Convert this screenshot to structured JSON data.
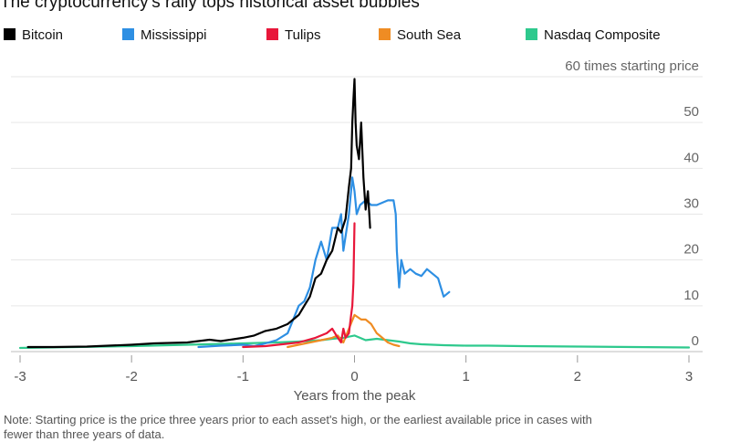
{
  "title": "The cryptocurrency's rally tops historical asset bubbles",
  "note": "Note: Starting price is the price three years prior to each asset's high, or the earliest available price in cases with fewer than three years of data.",
  "chart_data": {
    "type": "line",
    "xlabel": "Years from the peak",
    "ylabel": "60 times starting price",
    "xlim": [
      -3,
      3
    ],
    "ylim": [
      0,
      60
    ],
    "x_ticks": [
      -3,
      -2,
      -1,
      0,
      1,
      2,
      3
    ],
    "x_tick_labels": [
      "-3",
      "-2",
      "-1",
      "0",
      "1",
      "2",
      "3"
    ],
    "y_ticks": [
      0,
      10,
      20,
      30,
      40,
      50,
      60
    ],
    "y_tick_labels": [
      "0",
      "10",
      "20",
      "30",
      "40",
      "50",
      "60 times starting price"
    ],
    "grid": "horizontal",
    "legend_position": "top",
    "series": [
      {
        "name": "Bitcoin",
        "color": "#000000",
        "x": [
          -2.93,
          -2.7,
          -2.4,
          -2.0,
          -1.8,
          -1.5,
          -1.3,
          -1.2,
          -1.0,
          -0.9,
          -0.8,
          -0.7,
          -0.6,
          -0.5,
          -0.45,
          -0.4,
          -0.35,
          -0.3,
          -0.25,
          -0.2,
          -0.15,
          -0.12,
          -0.08,
          -0.05,
          -0.03,
          -0.02,
          -0.01,
          0.0,
          0.01,
          0.02,
          0.04,
          0.06,
          0.08,
          0.1,
          0.12,
          0.14
        ],
        "y": [
          1.0,
          1.0,
          1.1,
          1.5,
          1.8,
          2.0,
          2.6,
          2.3,
          3.0,
          3.5,
          4.5,
          5.0,
          6.0,
          8.0,
          10.0,
          12.0,
          16.0,
          17.0,
          20.0,
          22.0,
          27.0,
          26.0,
          29.0,
          36.0,
          40.0,
          50.0,
          55.0,
          59.5,
          50.0,
          45.0,
          42.0,
          50.0,
          38.0,
          31.0,
          35.0,
          27.0
        ]
      },
      {
        "name": "Mississippi",
        "color": "#2e8fe3",
        "x": [
          -1.4,
          -1.2,
          -1.0,
          -0.9,
          -0.8,
          -0.7,
          -0.6,
          -0.55,
          -0.5,
          -0.45,
          -0.4,
          -0.35,
          -0.3,
          -0.25,
          -0.2,
          -0.15,
          -0.12,
          -0.1,
          -0.05,
          -0.02,
          0.0,
          0.02,
          0.05,
          0.1,
          0.15,
          0.2,
          0.3,
          0.35,
          0.37,
          0.38,
          0.4,
          0.42,
          0.45,
          0.5,
          0.55,
          0.6,
          0.65,
          0.7,
          0.75,
          0.8,
          0.85
        ],
        "y": [
          1.0,
          1.3,
          1.5,
          1.2,
          1.8,
          2.5,
          4.0,
          7.0,
          10.0,
          11.0,
          14.0,
          20.0,
          24.0,
          20.0,
          27.0,
          27.0,
          30.0,
          22.0,
          30.0,
          38.0,
          35.0,
          30.0,
          32.0,
          33.0,
          32.0,
          32.0,
          33.0,
          33.0,
          30.0,
          22.0,
          14.0,
          20.0,
          17.0,
          18.0,
          17.0,
          16.5,
          18.0,
          17.0,
          16.0,
          12.0,
          13.0
        ]
      },
      {
        "name": "Tulips",
        "color": "#e8173a",
        "x": [
          -1.0,
          -0.8,
          -0.5,
          -0.35,
          -0.25,
          -0.2,
          -0.15,
          -0.12,
          -0.1,
          -0.08,
          -0.05,
          -0.03,
          -0.02,
          -0.01,
          0.0
        ],
        "y": [
          1.0,
          1.2,
          2.0,
          3.0,
          4.0,
          5.0,
          3.0,
          2.0,
          5.0,
          3.0,
          4.0,
          8.0,
          10.0,
          15.0,
          28.0
        ]
      },
      {
        "name": "South Sea",
        "color": "#ef8c23",
        "x": [
          -0.6,
          -0.5,
          -0.4,
          -0.3,
          -0.2,
          -0.15,
          -0.1,
          -0.05,
          0.0,
          0.03,
          0.06,
          0.1,
          0.15,
          0.2,
          0.25,
          0.3,
          0.35,
          0.4
        ],
        "y": [
          1.0,
          1.5,
          2.0,
          2.5,
          3.0,
          3.5,
          2.0,
          5.0,
          8.0,
          7.5,
          7.0,
          7.0,
          6.0,
          4.0,
          3.0,
          2.0,
          1.5,
          1.2
        ]
      },
      {
        "name": "Nasdaq Composite",
        "color": "#2ec98d",
        "x": [
          -3.0,
          -2.5,
          -2.0,
          -1.5,
          -1.0,
          -0.7,
          -0.5,
          -0.3,
          -0.2,
          -0.1,
          0.0,
          0.1,
          0.2,
          0.3,
          0.4,
          0.5,
          0.6,
          0.8,
          1.0,
          1.2,
          1.5,
          2.0,
          2.5,
          3.0
        ],
        "y": [
          0.8,
          1.0,
          1.2,
          1.5,
          1.8,
          2.0,
          2.2,
          2.5,
          2.8,
          3.0,
          3.5,
          2.5,
          2.8,
          2.5,
          2.2,
          1.8,
          1.6,
          1.4,
          1.3,
          1.3,
          1.2,
          1.1,
          1.0,
          0.9
        ]
      }
    ]
  }
}
